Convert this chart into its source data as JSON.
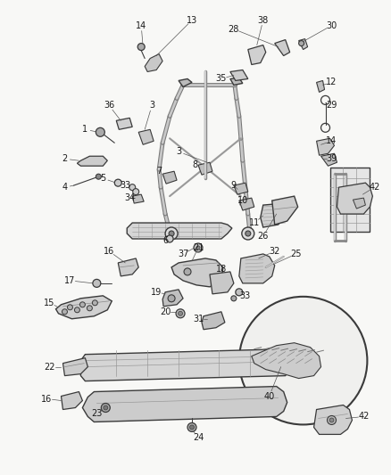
{
  "bg_color": "#f8f8f6",
  "line_color": "#3a3a3a",
  "text_color": "#1a1a1a",
  "fig_width": 4.38,
  "fig_height": 5.33,
  "dpi": 100
}
